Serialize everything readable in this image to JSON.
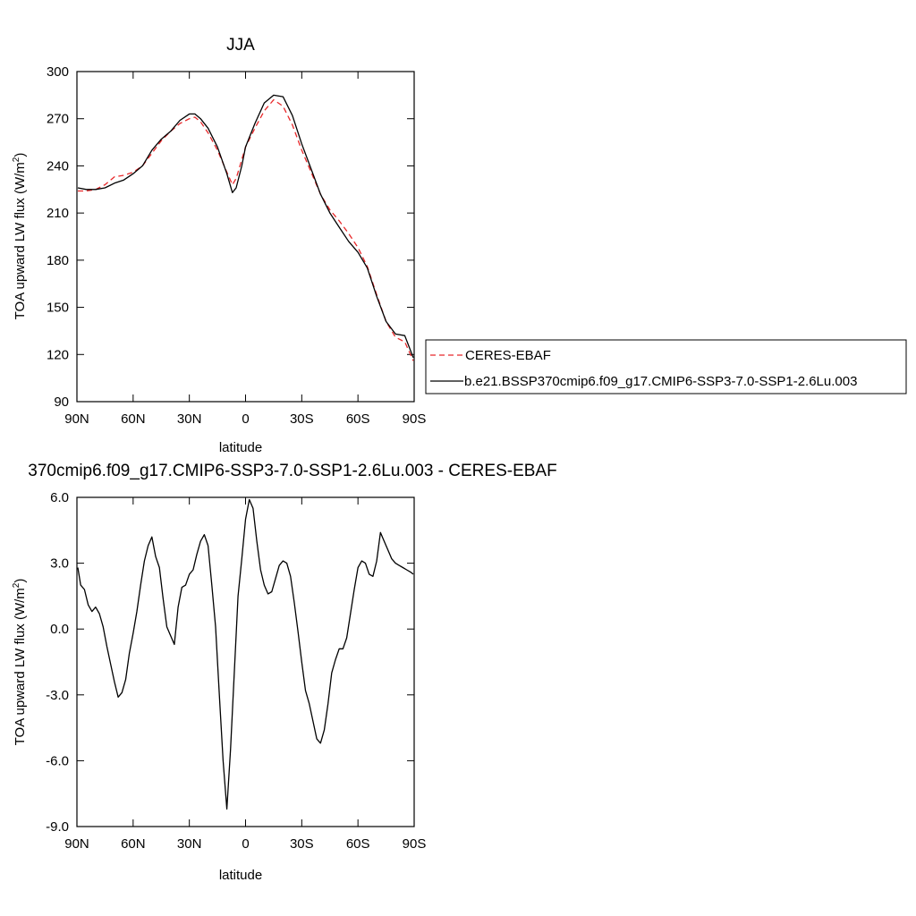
{
  "chart_data": [
    {
      "type": "line",
      "title": "JJA",
      "xlabel": "latitude",
      "ylabel": "TOA upward LW flux (W/m²)",
      "ylabel_main": "TOA upward LW flux (W/m",
      "ylabel_sup": "2",
      "ylabel_end": ")",
      "xlim": [
        90,
        -90
      ],
      "ylim": [
        90,
        300
      ],
      "x_ticks": [
        90,
        60,
        30,
        0,
        -30,
        -60,
        -90
      ],
      "x_tick_labels": [
        "90N",
        "60N",
        "30N",
        "0",
        "30S",
        "60S",
        "90S"
      ],
      "y_ticks": [
        90,
        120,
        150,
        180,
        210,
        240,
        270,
        300
      ],
      "y_tick_labels": [
        "90",
        "120",
        "150",
        "180",
        "210",
        "240",
        "270",
        "300"
      ],
      "legend_placement": "right",
      "series": [
        {
          "name": "CERES-EBAF",
          "color": "#e8282a",
          "style": "dashed",
          "x": [
            89.5,
            85,
            80,
            75,
            70,
            65,
            60,
            55,
            50,
            45,
            40,
            35,
            30,
            27,
            24,
            20,
            15,
            10,
            7,
            5,
            2,
            0,
            -5,
            -10,
            -15,
            -20,
            -25,
            -30,
            -35,
            -40,
            -45,
            -50,
            -55,
            -60,
            -65,
            -70,
            -75,
            -80,
            -85,
            -89.5
          ],
          "y": [
            224,
            224,
            225,
            228,
            233,
            234,
            236,
            240,
            248,
            256,
            262,
            267,
            270,
            271,
            268,
            261,
            250,
            236,
            228,
            232,
            244,
            252,
            264,
            275,
            282,
            278,
            266,
            250,
            236,
            222,
            212,
            205,
            197,
            188,
            176,
            158,
            141,
            131,
            128,
            116
          ]
        },
        {
          "name": "b.e21.BSSP370cmip6.f09_g17.CMIP6-SSP3-7.0-SSP1-2.6Lu.003",
          "color": "#000000",
          "style": "solid",
          "x": [
            89.5,
            85,
            80,
            75,
            70,
            65,
            60,
            55,
            50,
            45,
            40,
            35,
            30,
            27,
            24,
            20,
            15,
            10,
            7,
            5,
            2,
            0,
            -5,
            -10,
            -15,
            -20,
            -25,
            -30,
            -35,
            -40,
            -45,
            -50,
            -55,
            -60,
            -65,
            -70,
            -75,
            -80,
            -85,
            -89.5
          ],
          "y": [
            226,
            225,
            225,
            226,
            229,
            231,
            235,
            240,
            250,
            257,
            262,
            269,
            273,
            273,
            270,
            264,
            252,
            235,
            223,
            226,
            240,
            252,
            267,
            280,
            285,
            284,
            272,
            254,
            238,
            222,
            210,
            201,
            192,
            185,
            175,
            157,
            141,
            133,
            132,
            118
          ]
        }
      ]
    },
    {
      "type": "line",
      "title": "370cmip6.f09_g17.CMIP6-SSP3-7.0-SSP1-2.6Lu.003 - CERES-EBAF",
      "xlabel": "latitude",
      "ylabel": "TOA upward LW flux (W/m²)",
      "ylabel_main": "TOA upward LW flux (W/m",
      "ylabel_sup": "2",
      "ylabel_end": ")",
      "xlim": [
        90,
        -90
      ],
      "ylim": [
        -9,
        6
      ],
      "x_ticks": [
        90,
        60,
        30,
        0,
        -30,
        -60,
        -90
      ],
      "x_tick_labels": [
        "90N",
        "60N",
        "30N",
        "0",
        "30S",
        "60S",
        "90S"
      ],
      "y_ticks": [
        -9,
        -6,
        -3,
        0,
        3,
        6
      ],
      "y_tick_labels": [
        "-9.0",
        "-6.0",
        "-3.0",
        "0.0",
        "3.0",
        "6.0"
      ],
      "series": [
        {
          "color": "#000000",
          "style": "solid",
          "x": [
            89.5,
            88,
            86,
            84,
            82,
            80,
            78,
            76,
            74,
            72,
            70,
            68,
            66,
            64,
            62,
            60,
            58,
            56,
            54,
            52,
            50,
            48,
            46,
            44,
            42,
            40,
            38,
            36,
            34,
            32,
            30,
            28,
            26,
            24,
            22,
            20,
            18,
            16,
            14,
            12,
            10,
            8,
            6,
            4,
            2,
            0,
            -2,
            -4,
            -6,
            -8,
            -10,
            -12,
            -14,
            -16,
            -18,
            -20,
            -22,
            -24,
            -26,
            -28,
            -30,
            -32,
            -34,
            -36,
            -38,
            -40,
            -42,
            -44,
            -46,
            -48,
            -50,
            -52,
            -54,
            -56,
            -58,
            -60,
            -62,
            -64,
            -66,
            -68,
            -70,
            -72,
            -74,
            -76,
            -78,
            -80,
            -82,
            -84,
            -86,
            -88,
            -89.5
          ],
          "y": [
            2.8,
            2.0,
            1.8,
            1.1,
            0.8,
            1.0,
            0.7,
            0.1,
            -0.8,
            -1.6,
            -2.4,
            -3.1,
            -2.9,
            -2.3,
            -1.1,
            -0.2,
            0.8,
            2.0,
            3.1,
            3.8,
            4.2,
            3.3,
            2.8,
            1.4,
            0.1,
            -0.3,
            -0.7,
            1.0,
            1.9,
            2.0,
            2.5,
            2.7,
            3.4,
            4.0,
            4.3,
            3.8,
            2.0,
            0.1,
            -3.0,
            -6.0,
            -8.2,
            -5.5,
            -2.0,
            1.5,
            3.2,
            5.0,
            5.9,
            5.5,
            4.0,
            2.7,
            2.0,
            1.6,
            1.7,
            2.3,
            2.9,
            3.1,
            3.0,
            2.4,
            1.2,
            -0.1,
            -1.5,
            -2.8,
            -3.4,
            -4.2,
            -5.0,
            -5.2,
            -4.6,
            -3.4,
            -2.0,
            -1.4,
            -0.9,
            -0.9,
            -0.4,
            0.7,
            1.8,
            2.8,
            3.1,
            3.0,
            2.5,
            2.4,
            3.1,
            4.4,
            4.0,
            3.6,
            3.2,
            3.0,
            2.9,
            2.8,
            2.7,
            2.6,
            2.5
          ]
        }
      ]
    }
  ]
}
